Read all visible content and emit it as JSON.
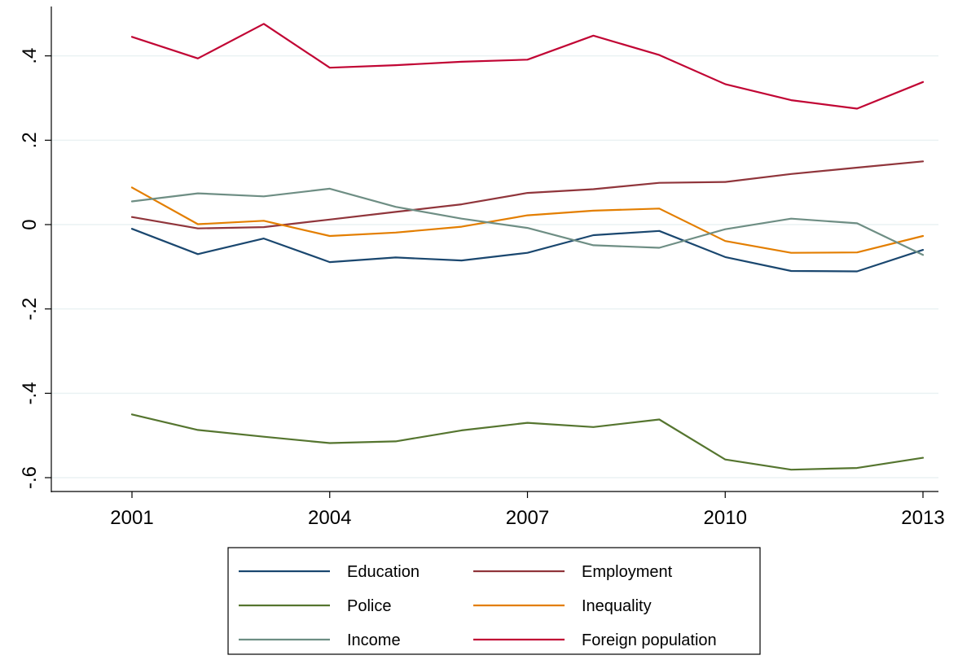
{
  "chart_data": {
    "type": "line",
    "title": "",
    "xlabel": "",
    "ylabel": "",
    "x": [
      2001,
      2002,
      2003,
      2004,
      2005,
      2006,
      2007,
      2008,
      2009,
      2010,
      2011,
      2012,
      2013
    ],
    "xticks": [
      2001,
      2004,
      2007,
      2010,
      2013
    ],
    "xtick_labels": [
      "2001",
      "2004",
      "2007",
      "2010",
      "2013"
    ],
    "xlim": [
      1997,
      2013.7
    ],
    "yticks": [
      -0.6,
      -0.4,
      -0.2,
      0,
      0.2,
      0.4
    ],
    "ytick_labels": [
      "-.6",
      "-.4",
      "-.2",
      "0",
      ".2",
      ".4"
    ],
    "ylim": [
      -0.63,
      0.5
    ],
    "grid": "horizontal",
    "legend_position": "bottom",
    "series": [
      {
        "name": "Education",
        "color": "#1a476f",
        "values": [
          -0.01,
          -0.07,
          -0.033,
          -0.089,
          -0.078,
          -0.085,
          -0.067,
          -0.025,
          -0.015,
          -0.077,
          -0.11,
          -0.111,
          -0.06
        ]
      },
      {
        "name": "Employment",
        "color": "#90353b",
        "values": [
          0.018,
          -0.009,
          -0.006,
          0.012,
          0.03,
          0.048,
          0.075,
          0.084,
          0.099,
          0.101,
          0.12,
          0.135,
          0.15
        ]
      },
      {
        "name": "Police",
        "color": "#55752f",
        "values": [
          -0.45,
          -0.487,
          -0.503,
          -0.518,
          -0.514,
          -0.488,
          -0.47,
          -0.48,
          -0.462,
          -0.557,
          -0.581,
          -0.577,
          -0.553
        ]
      },
      {
        "name": "Inequality",
        "color": "#e37e00",
        "values": [
          0.088,
          0.001,
          0.009,
          -0.027,
          -0.019,
          -0.005,
          0.022,
          0.033,
          0.038,
          -0.039,
          -0.067,
          -0.066,
          -0.027
        ]
      },
      {
        "name": "Income",
        "color": "#6e8e84",
        "values": [
          0.055,
          0.074,
          0.067,
          0.085,
          0.042,
          0.014,
          -0.008,
          -0.049,
          -0.055,
          -0.011,
          0.014,
          0.003,
          -0.072
        ]
      },
      {
        "name": "Foreign population",
        "color": "#c10534",
        "values": [
          0.445,
          0.394,
          0.476,
          0.372,
          0.378,
          0.386,
          0.391,
          0.448,
          0.402,
          0.333,
          0.295,
          0.275,
          0.338
        ]
      }
    ]
  }
}
